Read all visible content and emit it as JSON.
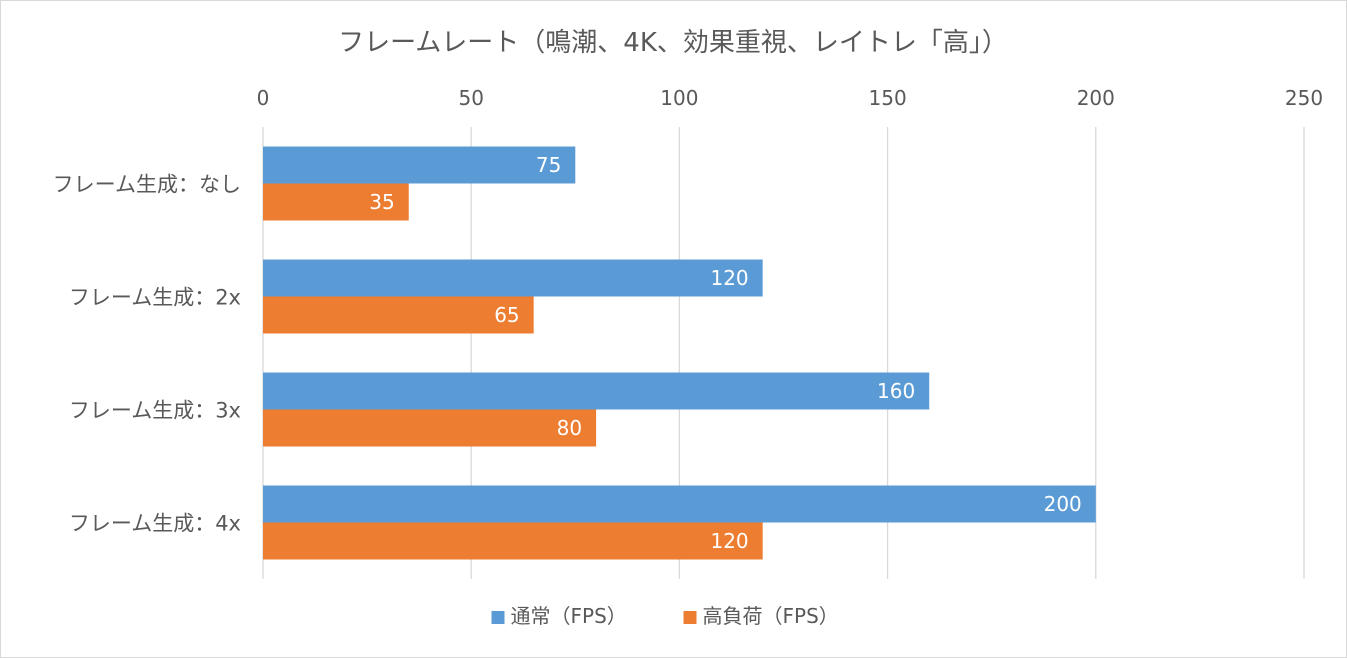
{
  "chart_data": {
    "type": "bar",
    "orientation": "horizontal",
    "title": "フレームレート（鳴潮、4K、効果重視、レイトレ「高」）",
    "categories": [
      "フレーム生成：なし",
      "フレーム生成：2x",
      "フレーム生成：3x",
      "フレーム生成：4x"
    ],
    "series": [
      {
        "name": "通常（FPS）",
        "color": "#5b9bd5",
        "values": [
          75,
          120,
          160,
          200
        ]
      },
      {
        "name": "高負荷（FPS）",
        "color": "#ed7d31",
        "values": [
          35,
          65,
          80,
          120
        ]
      }
    ],
    "xlim": [
      0,
      250
    ],
    "x_ticks": [
      "0",
      "50",
      "100",
      "150",
      "200",
      "250"
    ],
    "x_axis_position": "top",
    "grid": true,
    "data_labels": true,
    "legend_position": "bottom"
  }
}
